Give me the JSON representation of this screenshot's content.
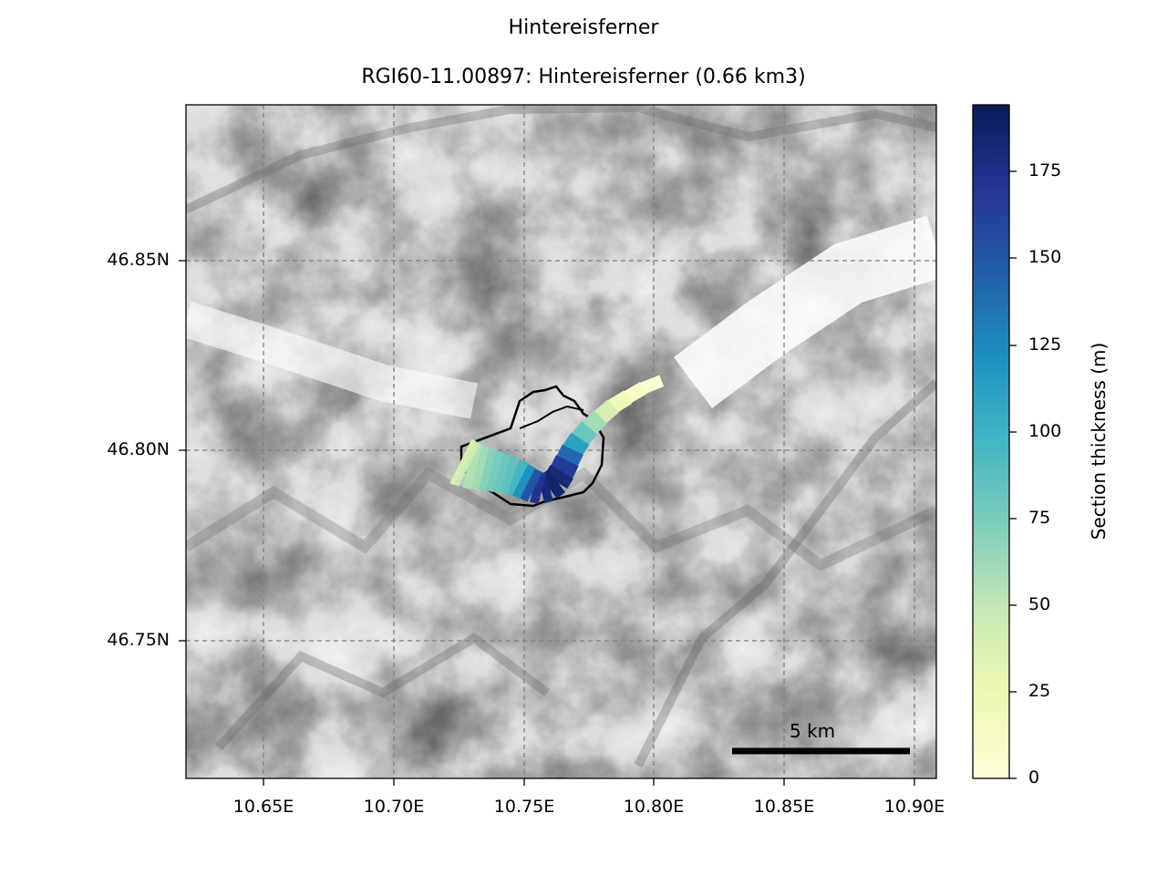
{
  "figure_title": "Hintereisferner",
  "map_title": "RGI60-11.00897: Hintereisferner (0.66 km3)",
  "x_ticks": [
    "10.65E",
    "10.70E",
    "10.75E",
    "10.80E",
    "10.85E",
    "10.90E"
  ],
  "y_ticks": [
    "46.85N",
    "46.80N",
    "46.75N"
  ],
  "colorbar": {
    "label": "Section thickness (m)",
    "ticks": [
      "0",
      "25",
      "50",
      "75",
      "100",
      "125",
      "150",
      "175"
    ],
    "min": 0,
    "max": 193,
    "colormap": "YlGnBu",
    "colors": [
      "#ffffd9",
      "#edf8b1",
      "#c7e9b4",
      "#7fcdbb",
      "#41b6c4",
      "#1d91c0",
      "#225ea8",
      "#253494",
      "#081d58"
    ]
  },
  "scalebar_label": "5 km",
  "grid": "dashed gray",
  "chart_data": {
    "type": "map",
    "glacier": "RGI60-11.00897",
    "name": "Hintereisferner",
    "volume_km3": 0.66,
    "x_range_deg": [
      10.62,
      10.907
    ],
    "y_range_deg": [
      46.712,
      46.891
    ],
    "flowline_thickness_m": [
      5,
      10,
      20,
      40,
      60,
      80,
      110,
      140,
      165,
      180,
      185,
      180,
      170,
      150,
      120,
      95,
      85,
      80,
      75,
      70,
      60,
      55,
      45,
      40,
      35
    ]
  }
}
